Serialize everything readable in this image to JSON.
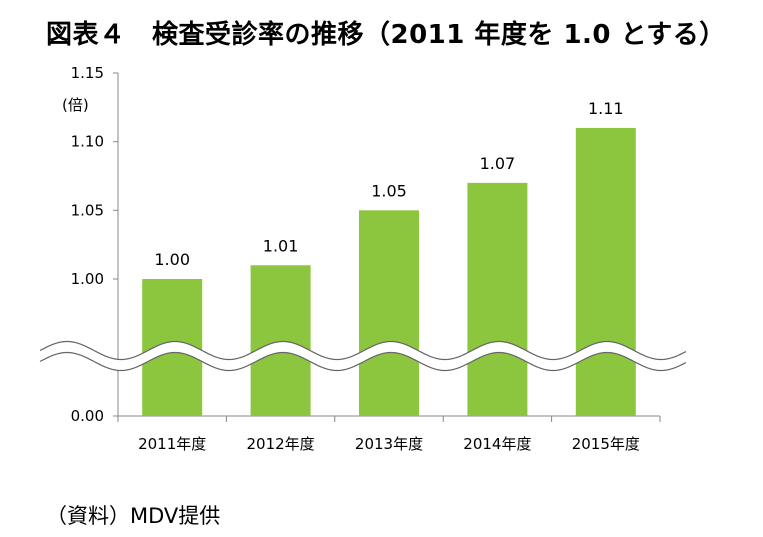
{
  "chart_data": {
    "type": "bar",
    "title": "図表４　検査受診率の推移（2011 年度を 1.0 とする）",
    "unit_label": "(倍)",
    "categories": [
      "2011年度",
      "2012年度",
      "2013年度",
      "2014年度",
      "2015年度"
    ],
    "values": [
      1.0,
      1.01,
      1.05,
      1.07,
      1.11
    ],
    "data_labels": [
      "1.00",
      "1.01",
      "1.05",
      "1.07",
      "1.11"
    ],
    "y_ticks_upper": [
      1.0,
      1.05,
      1.1,
      1.15
    ],
    "y_tick_labels_upper": [
      "1.00",
      "1.05",
      "1.10",
      "1.15"
    ],
    "y_tick_lower": 0.0,
    "y_tick_label_lower": "0.00",
    "axis_break": true,
    "xlabel": "",
    "ylabel": "",
    "bar_color": "#8cc63f",
    "grid": false,
    "legend": "none"
  },
  "source": "（資料）MDV提供"
}
